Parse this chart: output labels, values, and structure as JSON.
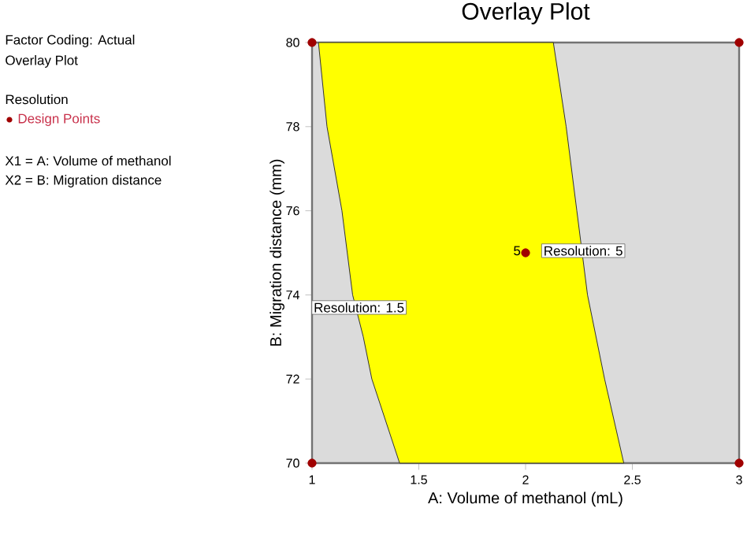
{
  "chart_data": {
    "type": "scatter",
    "title": "Overlay Plot",
    "xlabel": "A: Volume of methanol (mL)",
    "ylabel": "B: Migration distance (mm)",
    "legend_title": "Resolution",
    "legend": "left",
    "xlim": [
      1,
      3
    ],
    "ylim": [
      70,
      80
    ],
    "xticks": [
      1,
      1.5,
      2,
      2.5,
      3
    ],
    "yticks": [
      70,
      72,
      74,
      76,
      78,
      80
    ],
    "series": [
      {
        "type": "area",
        "color": "#ffff00",
        "x": [
          1.03,
          1.07,
          1.14,
          1.19,
          1.24,
          1.28,
          1.41,
          2.46,
          2.37,
          2.29,
          2.24,
          2.19,
          2.13
        ],
        "values": [
          80,
          78,
          76,
          74,
          73,
          72,
          70,
          70,
          72,
          74,
          76,
          78,
          80
        ]
      },
      {
        "name": "Design Points",
        "marker": "circle",
        "color": "#a00000",
        "x": [
          1,
          1,
          2,
          3,
          3
        ],
        "values": [
          70,
          80,
          75,
          70,
          80
        ]
      }
    ],
    "annotations": [
      "Factor Coding: Actual",
      "Overlay Plot",
      "X1 = A: Volume of methanol",
      "X2 = B: Migration distance",
      {
        "text": "Resolution: 1.5",
        "x": 1.22,
        "y": 73.7
      },
      {
        "text": "Resolution: 5",
        "x": 2.27,
        "y": 75.05
      },
      {
        "text": "5",
        "x": 1.96,
        "y": 75.05
      }
    ]
  }
}
